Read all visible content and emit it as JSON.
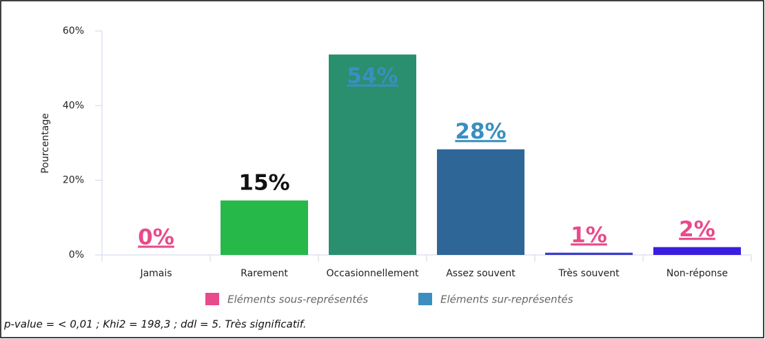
{
  "chart_data": {
    "type": "bar",
    "categories": [
      "Jamais",
      "Rarement",
      "Occasionnellement",
      "Assez souvent",
      "Très souvent",
      "Non-réponse"
    ],
    "values": [
      0,
      14.6,
      53.7,
      28.3,
      0.6,
      2.1
    ],
    "value_labels": [
      "0%",
      "15%",
      "54%",
      "28%",
      "1%",
      "2%"
    ],
    "colors": [
      "#e84a8a",
      "#27b84a",
      "#2a8f6e",
      "#2f6698",
      "#3a3bd0",
      "#3a1ee0"
    ],
    "label_colors": [
      "#e84a8a",
      "#111111",
      "#3a8fc0",
      "#3a8fc0",
      "#e84a8a",
      "#e84a8a"
    ],
    "ylabel": "Pourcentage",
    "ylim": [
      0,
      60
    ],
    "yticks": [
      {
        "value": 0,
        "label": "0%"
      },
      {
        "value": 20,
        "label": "20%"
      },
      {
        "value": 40,
        "label": "40%"
      },
      {
        "value": 60,
        "label": "60%"
      }
    ],
    "legend": [
      {
        "name": "Eléments sous-représentés",
        "color": "#e84a8a"
      },
      {
        "name": "Eléments sur-représentés",
        "color": "#3a8fc0"
      }
    ],
    "footnote": "p-value = < 0,01 ; Khi2 = 198,3 ; ddl = 5. Très significatif."
  }
}
